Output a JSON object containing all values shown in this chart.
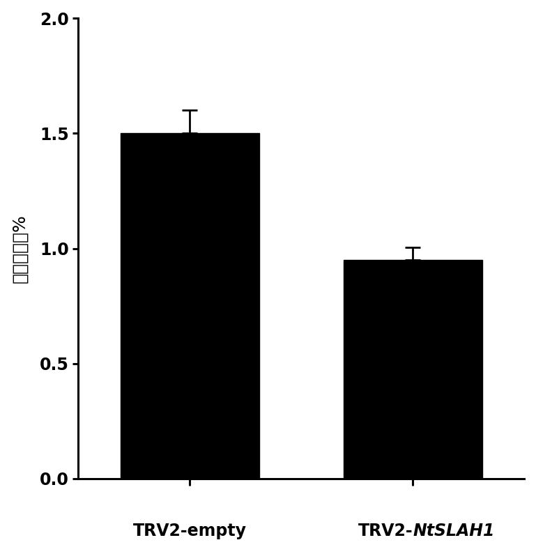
{
  "categories": [
    "TRV2-empty",
    "TRV2-NtSLAH1"
  ],
  "values": [
    1.5,
    0.95
  ],
  "errors": [
    0.1,
    0.055
  ],
  "bar_color": "#000000",
  "bar_width": 0.62,
  "ylabel": "氯离子含量%",
  "ylim": [
    0.0,
    2.0
  ],
  "yticks": [
    0.0,
    0.5,
    1.0,
    1.5,
    2.0
  ],
  "background_color": "#ffffff",
  "bar_positions": [
    1,
    2
  ],
  "xlim": [
    0.5,
    2.5
  ],
  "tick_fontsize": 17,
  "ylabel_fontsize": 18,
  "xlabel_fontsize": 17,
  "error_capsize": 8,
  "error_linewidth": 2.0,
  "axis_linewidth": 2.2
}
